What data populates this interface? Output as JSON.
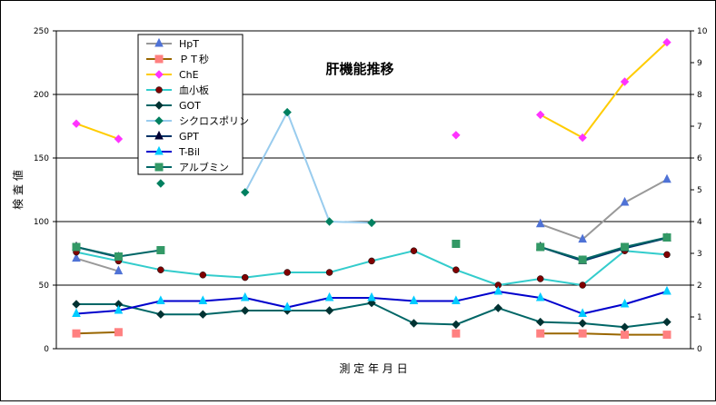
{
  "chart_data": {
    "type": "line",
    "title": "肝機能推移",
    "xlabel": "測 定 年 月 日",
    "ylabel": "検 査 値",
    "ylim": [
      0,
      250
    ],
    "y2lim": [
      0,
      10
    ],
    "yticks": [
      "0",
      "50",
      "100",
      "150",
      "200",
      "250"
    ],
    "y2ticks": [
      "0",
      "1",
      "2",
      "3",
      "4",
      "5",
      "6",
      "7",
      "8",
      "9",
      "10"
    ],
    "grid": true,
    "legend_position": "top-left",
    "x_count": 15,
    "series": [
      {
        "name": "HpT",
        "axis": "left",
        "color": "#999999",
        "marker": "triangle",
        "marker_color": "#4f72d6",
        "values": [
          71,
          61,
          null,
          null,
          null,
          null,
          null,
          null,
          null,
          null,
          null,
          98,
          86,
          115,
          133
        ]
      },
      {
        "name": "ＰＴ秒",
        "axis": "left",
        "color": "#996600",
        "marker": "square",
        "marker_color": "#ff8080",
        "values": [
          12,
          13,
          null,
          null,
          null,
          null,
          null,
          null,
          null,
          12,
          null,
          12,
          12,
          11,
          11
        ]
      },
      {
        "name": "ChE",
        "axis": "left",
        "color": "#ffcc00",
        "marker": "diamond",
        "marker_color": "#ff33ff",
        "values": [
          177,
          165,
          null,
          null,
          null,
          null,
          null,
          null,
          null,
          168,
          null,
          184,
          166,
          210,
          241
        ]
      },
      {
        "name": "血小板",
        "axis": "left",
        "color": "#33cccc",
        "marker": "circle",
        "marker_color": "#800000",
        "values": [
          76,
          69,
          62,
          58,
          56,
          60,
          60,
          69,
          77,
          62,
          50,
          55,
          50,
          77,
          74
        ]
      },
      {
        "name": "GOT",
        "axis": "left",
        "color": "#006666",
        "marker": "diamond",
        "marker_color": "#003333",
        "values": [
          35,
          35,
          27,
          27,
          30,
          30,
          30,
          36,
          20,
          19,
          32,
          21,
          20,
          17,
          21
        ]
      },
      {
        "name": "シクロスポリン",
        "axis": "left",
        "color": "#99ccee",
        "marker": "diamond",
        "marker_color": "#008060",
        "values": [
          null,
          null,
          130,
          null,
          123,
          186,
          100,
          99,
          null,
          null,
          null,
          null,
          null,
          null,
          null
        ]
      },
      {
        "name": "GPT",
        "axis": "left",
        "color": "#003366",
        "marker": "triangle",
        "marker_color": "#000033",
        "values": [
          80,
          72,
          null,
          null,
          null,
          null,
          null,
          null,
          null,
          null,
          null,
          80,
          69,
          79,
          87
        ]
      },
      {
        "name": "T-Bil",
        "axis": "right",
        "color": "#0000cc",
        "marker": "triangle",
        "marker_color": "#00ccff",
        "values": [
          1.1,
          1.2,
          1.5,
          1.5,
          1.6,
          1.3,
          1.6,
          1.6,
          1.5,
          1.5,
          1.8,
          1.6,
          1.1,
          1.4,
          1.8
        ]
      },
      {
        "name": "アルブミン",
        "axis": "right",
        "color": "#006666",
        "marker": "square",
        "marker_color": "#339966",
        "values": [
          3.2,
          2.9,
          3.1,
          null,
          null,
          null,
          null,
          null,
          null,
          3.3,
          null,
          3.2,
          2.8,
          3.2,
          3.5
        ]
      }
    ]
  }
}
